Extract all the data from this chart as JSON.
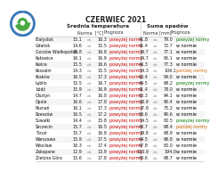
{
  "title": "CZERWIEC 2021",
  "section_temp": "Średnia temperatura",
  "section_precip": "Suma opadów",
  "col_norma_temp": "Norma  [°C]",
  "col_prognoza": "Prognoza",
  "col_norma_precip": "Norma [mm]",
  "cities": [
    "Białystok",
    "Gdańsk",
    "Gorzów Wielkopolski",
    "Katowice",
    "Kielce",
    "Koszalin",
    "Kraków",
    "Lublin",
    "Łódź",
    "Olsztyn",
    "Opole",
    "Poznań",
    "Rzeszów",
    "Suwałki",
    "Szczecin",
    "Toruń",
    "Warszawa",
    "Wrocław",
    "Zakopane",
    "Zielona Góra"
  ],
  "temp_min": [
    15.1,
    14.6,
    15.8,
    16.1,
    15.5,
    14.3,
    16.5,
    15.5,
    15.9,
    14.7,
    16.6,
    16.1,
    16.5,
    14.4,
    15.7,
    15.7,
    15.9,
    16.3,
    12.9,
    15.6
  ],
  "temp_max": [
    16.3,
    15.5,
    16.8,
    16.9,
    16.6,
    15.5,
    17.3,
    16.7,
    16.9,
    16.8,
    17.8,
    17.3,
    17.2,
    15.8,
    16.5,
    16.8,
    17.5,
    17.4,
    13.9,
    17.8
  ],
  "temp_prog": [
    "powyżej normy",
    "powyżej normy",
    "powyżej normy",
    "powyżej normy",
    "powyżej normy",
    "powyżej normy",
    "powyżej normy",
    "powyżej normy",
    "powyżej normy",
    "powyżej normy",
    "powyżej normy",
    "powyżej normy",
    "powyżej normy",
    "powyżej normy",
    "powyżej normy",
    "powyżej normy",
    "powyżej normy",
    "powyżej normy",
    "powyżej normy",
    "powyżej normy"
  ],
  "temp_prog_colors": [
    "#cc0000",
    "#cc0000",
    "#cc0000",
    "#cc0000",
    "#cc0000",
    "#cc0000",
    "#cc0000",
    "#cc0000",
    "#cc0000",
    "#cc0000",
    "#cc0000",
    "#cc0000",
    "#cc0000",
    "#cc0000",
    "#cc0000",
    "#cc0000",
    "#cc0000",
    "#cc0000",
    "#cc0000",
    "#cc0000"
  ],
  "precip_min": [
    41.8,
    41.4,
    39.7,
    34.7,
    46.3,
    54.3,
    60.4,
    49.5,
    41.4,
    60.3,
    63.9,
    37.8,
    63.6,
    54.5,
    43.7,
    39.8,
    44.5,
    47.8,
    120.9,
    43.6
  ],
  "precip_max": [
    79.0,
    72.7,
    77.1,
    95.1,
    77.3,
    106.1,
    99.0,
    68.2,
    78.0,
    94.1,
    90.4,
    75.2,
    90.6,
    82.5,
    68.4,
    68.9,
    98.8,
    80.0,
    194.0,
    68.7
  ],
  "precip_prog": [
    "powyżej normy",
    "w normie",
    "w normie",
    "w normie",
    "w normie",
    "poniżej normy",
    "w normie",
    "powyżej normy",
    "w normie",
    "w normie",
    "w normie",
    "w normie",
    "w normie",
    "powyżej normy",
    "poniżej normy",
    "w normie",
    "w normie",
    "w normie",
    "w normie",
    "w normie"
  ],
  "precip_prog_colors": [
    "#007700",
    "#000000",
    "#000000",
    "#000000",
    "#000000",
    "#cc6600",
    "#000000",
    "#007700",
    "#000000",
    "#000000",
    "#000000",
    "#000000",
    "#000000",
    "#007700",
    "#cc6600",
    "#000000",
    "#000000",
    "#000000",
    "#000000",
    "#000000"
  ],
  "row_colors": [
    "#f5f5f5",
    "#ffffff"
  ],
  "header_bg": "#e8e8e8",
  "bg_color": "#ffffff",
  "logo_blue": "#3a7ab8",
  "logo_green": "#4aaa44",
  "logo_white": "#ffffff"
}
